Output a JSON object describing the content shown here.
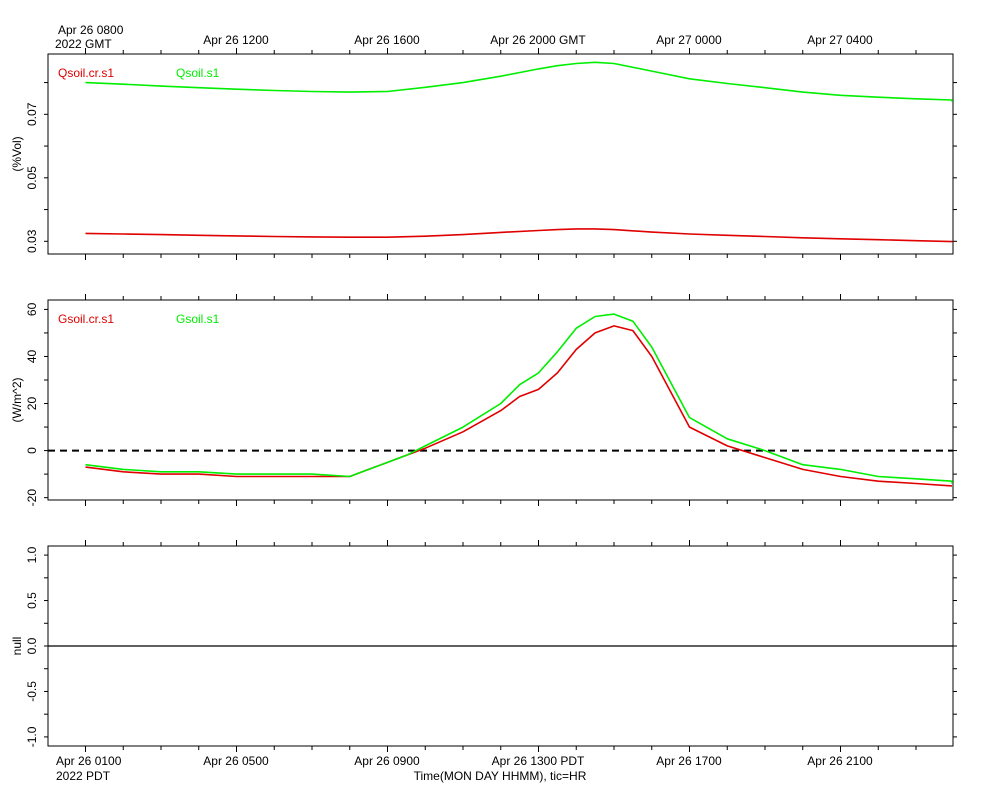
{
  "top_axis": {
    "first_label_line1": "Apr 26 0800",
    "first_label_line2": "2022 GMT",
    "labels": [
      "Apr 26 1200",
      "Apr 26 1600",
      "Apr 26 2000 GMT",
      "Apr 27 0000",
      "Apr 27 0400"
    ]
  },
  "bottom_axis": {
    "first_label_line1": "Apr 26 0100",
    "first_label_line2": "2022 PDT",
    "labels": [
      "Apr 26 0500",
      "Apr 26 0900",
      "Apr 26 1300 PDT",
      "Apr 26 1700",
      "Apr 26 2100"
    ],
    "title": "Time(MON DAY HHMM), tic=HR"
  },
  "colors": {
    "red": "#e00000",
    "green": "#00ee00",
    "black": "#000000"
  },
  "chart_data": [
    {
      "type": "line",
      "ylabel": "(%Vol)",
      "ylim": [
        0.026,
        0.089
      ],
      "yticks": [
        0.03,
        0.05,
        0.07
      ],
      "ytick_labels": [
        "0.03",
        "0.05",
        "0.07"
      ],
      "x_hours": [
        0,
        1,
        2,
        3,
        4,
        5,
        6,
        7,
        8,
        9,
        10,
        11,
        12,
        12.5,
        13,
        13.5,
        14,
        15,
        16,
        17,
        18,
        19,
        20,
        21,
        22,
        23,
        24
      ],
      "series": [
        {
          "name": "Qsoil.cr.s1",
          "color": "#e00000",
          "values": [
            0.0325,
            0.0323,
            0.0321,
            0.0319,
            0.0317,
            0.0315,
            0.0314,
            0.0313,
            0.0313,
            0.0316,
            0.0321,
            0.0328,
            0.0334,
            0.0337,
            0.0339,
            0.0339,
            0.0337,
            0.0329,
            0.0323,
            0.0319,
            0.0315,
            0.0311,
            0.0308,
            0.0305,
            0.0302,
            0.0299,
            0.0297
          ]
        },
        {
          "name": "Qsoil.s1",
          "color": "#00ee00",
          "values": [
            0.08,
            0.0795,
            0.0789,
            0.0784,
            0.0779,
            0.0775,
            0.0772,
            0.077,
            0.0772,
            0.0785,
            0.08,
            0.082,
            0.0843,
            0.0853,
            0.086,
            0.0864,
            0.086,
            0.0836,
            0.0812,
            0.0797,
            0.0784,
            0.077,
            0.076,
            0.0754,
            0.0749,
            0.0745,
            0.074
          ]
        }
      ]
    },
    {
      "type": "line",
      "ylabel": "(W/m^2)",
      "ylim": [
        -21,
        64
      ],
      "yticks": [
        -20,
        0,
        20,
        40,
        60
      ],
      "ytick_labels": [
        "-20",
        "0",
        "20",
        "40",
        "60"
      ],
      "reference_line": 0,
      "x_hours": [
        0,
        1,
        2,
        3,
        4,
        5,
        6,
        7,
        7.5,
        8,
        8.5,
        9,
        10,
        11,
        11.5,
        12,
        12.5,
        13,
        13.5,
        14,
        14.5,
        15,
        16,
        17,
        18,
        19,
        20,
        21,
        22,
        23,
        24
      ],
      "series": [
        {
          "name": "Gsoil.cr.s1",
          "color": "#e00000",
          "values": [
            -7,
            -9,
            -10,
            -10,
            -11,
            -11,
            -11,
            -11,
            -8,
            -5,
            -2,
            1,
            8,
            17,
            23,
            26,
            33,
            43,
            50,
            53,
            51,
            40,
            10,
            2,
            -3,
            -8,
            -11,
            -13,
            -14,
            -15,
            -15
          ]
        },
        {
          "name": "Gsoil.s1",
          "color": "#00ee00",
          "values": [
            -6,
            -8,
            -9,
            -9,
            -10,
            -10,
            -10,
            -11,
            -8,
            -5,
            -2,
            2,
            10,
            20,
            28,
            33,
            42,
            52,
            57,
            58,
            55,
            44,
            14,
            5,
            0,
            -6,
            -8,
            -11,
            -12,
            -13,
            -14
          ]
        }
      ]
    },
    {
      "type": "line",
      "ylabel": "null",
      "ylim": [
        -1.1,
        1.1
      ],
      "yticks": [
        -1.0,
        -0.5,
        0.0,
        0.5,
        1.0
      ],
      "ytick_labels": [
        "-1.0",
        "-0.5",
        "0.0",
        "0.5",
        "1.0"
      ],
      "reference_line": 0,
      "series": []
    }
  ]
}
